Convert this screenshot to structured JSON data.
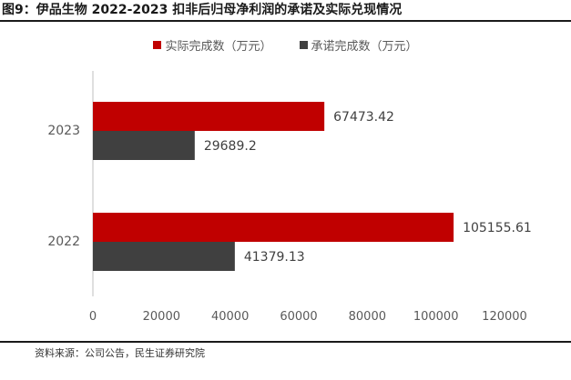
{
  "figure_title": "图9：伊品生物 2022-2023 扣非后归母净利润的承诺及实际兑现情况",
  "source_note": "资料来源：公司公告，民生证券研究院",
  "colors": {
    "actual": "#c00000",
    "committed": "#404040",
    "axis": "#bfbfbf",
    "text": "#595959"
  },
  "chart_data": {
    "type": "bar",
    "orientation": "horizontal",
    "categories": [
      "2023",
      "2022"
    ],
    "series": [
      {
        "name": "实际完成数（万元）",
        "values": [
          67473.42,
          105155.61
        ],
        "labels": [
          "67473.42",
          "105155.61"
        ]
      },
      {
        "name": "承诺完成数（万元）",
        "values": [
          29689.2,
          41379.13
        ],
        "labels": [
          "29689.2",
          "41379.13"
        ]
      }
    ],
    "xlim": [
      0,
      120000
    ],
    "xticks": [
      "0",
      "20000",
      "40000",
      "60000",
      "80000",
      "100000",
      "120000"
    ],
    "legend_position": "top",
    "grid": false
  }
}
